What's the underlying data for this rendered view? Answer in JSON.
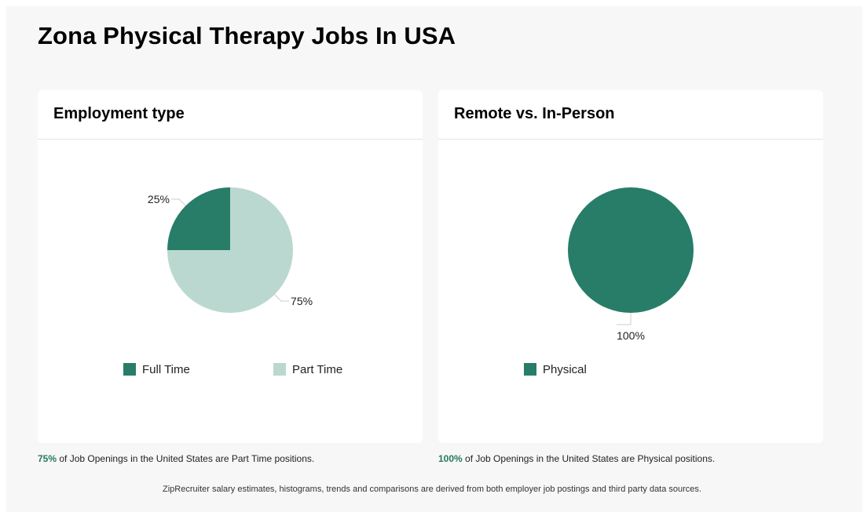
{
  "page": {
    "title": "Zona Physical Therapy Jobs In USA",
    "footer": "ZipRecruiter salary estimates, histograms, trends and comparisons are derived from both employer job postings and third party data sources."
  },
  "colors": {
    "dark_green": "#277d68",
    "light_green": "#bad8cf",
    "accent_text": "#247a5c"
  },
  "chart_data": [
    {
      "type": "pie",
      "title": "Employment type",
      "categories": [
        "Full Time",
        "Part Time"
      ],
      "values": [
        25,
        75
      ],
      "value_labels": [
        "25%",
        "75%"
      ],
      "colors": [
        "#277d68",
        "#bad8cf"
      ],
      "legend_placement": "bottom",
      "caption": {
        "pct": "75%",
        "text": " of Job Openings in the United States are Part Time positions."
      }
    },
    {
      "type": "pie",
      "title": "Remote vs. In-Person",
      "categories": [
        "Physical"
      ],
      "values": [
        100
      ],
      "value_labels": [
        "100%"
      ],
      "colors": [
        "#277d68"
      ],
      "legend_placement": "bottom",
      "caption": {
        "pct": "100%",
        "text": " of Job Openings in the United States are Physical positions."
      }
    }
  ]
}
